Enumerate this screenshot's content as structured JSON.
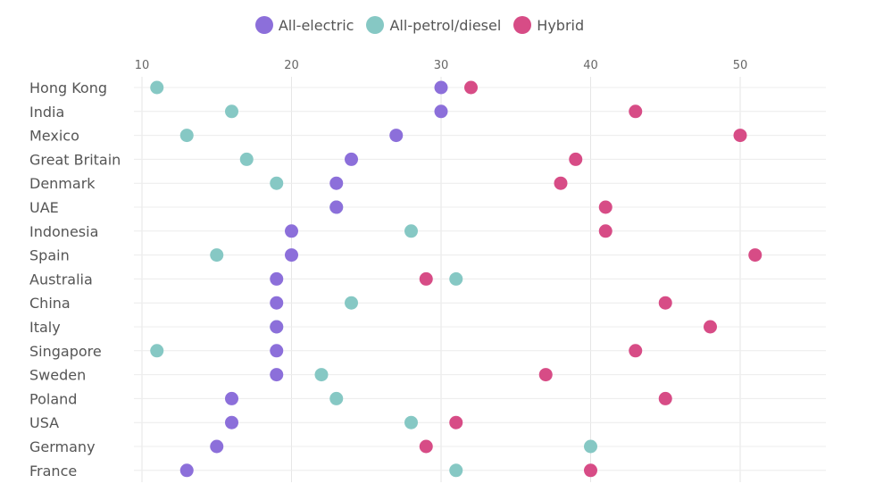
{
  "chart_data": {
    "type": "scatter",
    "title": "",
    "xlabel": "",
    "ylabel": "",
    "xlim": [
      8,
      56
    ],
    "x_ticks": [
      10,
      20,
      30,
      40,
      50
    ],
    "grid": true,
    "legend_position": "top",
    "categories": [
      "Hong Kong",
      "India",
      "Mexico",
      "Great Britain",
      "Denmark",
      "UAE",
      "Indonesia",
      "Spain",
      "Australia",
      "China",
      "Italy",
      "Singapore",
      "Sweden",
      "Poland",
      "USA",
      "Germany",
      "France"
    ],
    "series": [
      {
        "name": "All-electric",
        "color": "#8c6fda",
        "values": [
          30,
          30,
          27,
          24,
          23,
          23,
          20,
          20,
          19,
          19,
          19,
          19,
          19,
          16,
          16,
          15,
          13
        ]
      },
      {
        "name": "All-petrol/diesel",
        "color": "#86c8c4",
        "values": [
          11,
          16,
          13,
          17,
          19,
          23,
          28,
          15,
          31,
          24,
          19,
          11,
          22,
          23,
          28,
          40,
          31
        ]
      },
      {
        "name": "Hybrid",
        "color": "#d74c86",
        "values": [
          32,
          43,
          50,
          39,
          38,
          41,
          41,
          51,
          29,
          45,
          48,
          43,
          37,
          45,
          31,
          29,
          40
        ]
      }
    ]
  }
}
